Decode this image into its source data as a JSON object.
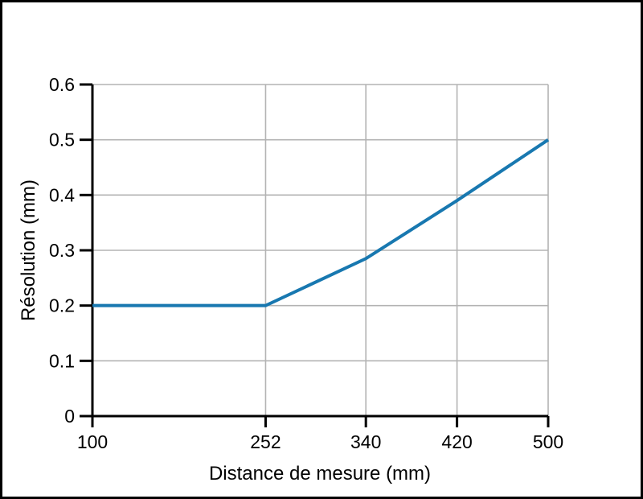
{
  "chart_data": {
    "type": "line",
    "title": "",
    "xlabel": "Distance de mesure (mm)",
    "ylabel": "Résolution (mm)",
    "x": [
      100,
      252,
      340,
      420,
      500
    ],
    "y": [
      0.2,
      0.2,
      0.285,
      0.39,
      0.5
    ],
    "xtick_labels": [
      "100",
      "252",
      "340",
      "420",
      "500"
    ],
    "xtick_values": [
      100,
      252,
      340,
      420,
      500
    ],
    "ytick_labels": [
      "0",
      "0.1",
      "0.2",
      "0.3",
      "0.4",
      "0.5",
      "0.6"
    ],
    "ytick_values": [
      0,
      0.1,
      0.2,
      0.3,
      0.4,
      0.5,
      0.6
    ],
    "xlim": [
      100,
      500
    ],
    "ylim": [
      0,
      0.6
    ],
    "grid": true,
    "legend": "none",
    "colors": {
      "line": "#1878b0",
      "grid": "#b3b3b3",
      "axis": "#000000",
      "frame": "#000000",
      "background": "#ffffff"
    }
  }
}
